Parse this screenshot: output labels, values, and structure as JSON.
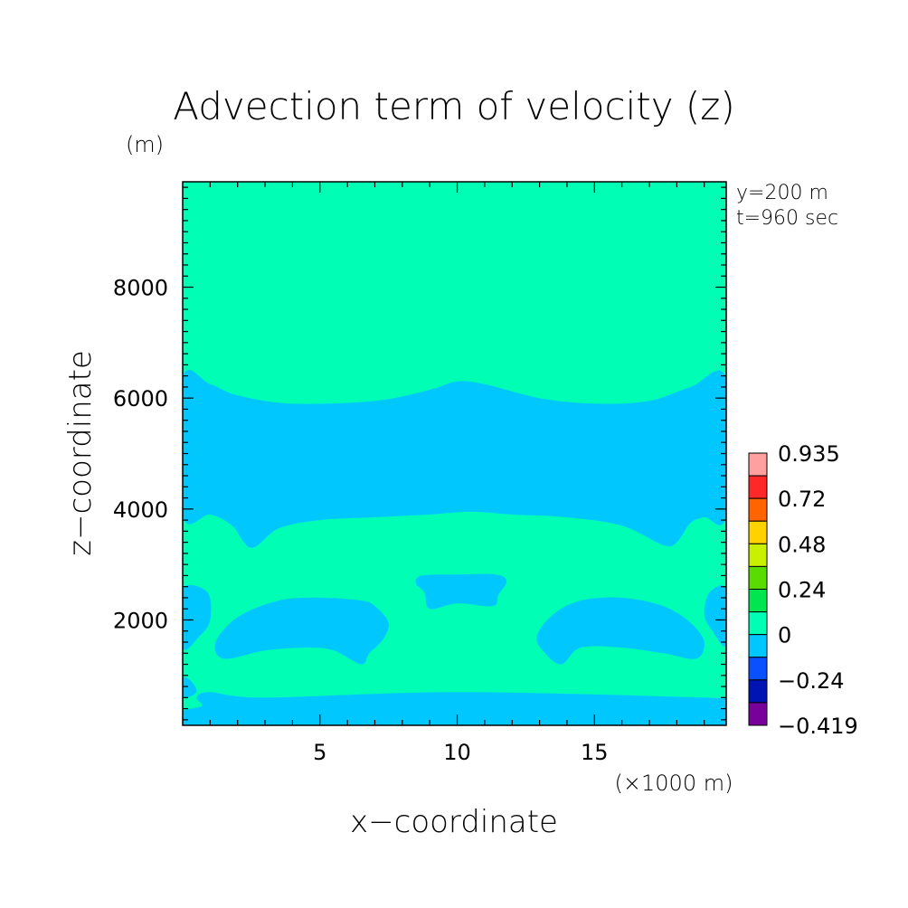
{
  "chart_data": {
    "type": "heatmap",
    "title": "Advection term of velocity (z)",
    "y_unit": "(m)",
    "x_unit": "(×1000 m)",
    "xlabel": "x−coordinate",
    "ylabel": "z−coordinate",
    "xlim": [
      0,
      19.8
    ],
    "ylim": [
      100,
      9900
    ],
    "x_ticks": [
      5,
      10,
      15
    ],
    "x_tick_labels": [
      "5",
      "10",
      "15"
    ],
    "y_ticks": [
      2000,
      4000,
      6000,
      8000
    ],
    "y_tick_labels": [
      "2000",
      "4000",
      "6000",
      "8000"
    ],
    "annotations": [
      "y=200 m",
      "t=960 sec"
    ],
    "background_level_color": "#00ffb4",
    "colorbar": {
      "labels": [
        "0.935",
        "0.72",
        "0.48",
        "0.24",
        "0",
        "−0.24",
        "−0.419"
      ],
      "bands": [
        {
          "from": 0.84,
          "to": 0.935,
          "color": "#ffa0a0"
        },
        {
          "from": 0.72,
          "to": 0.84,
          "color": "#ff2828"
        },
        {
          "from": 0.6,
          "to": 0.72,
          "color": "#ff6400"
        },
        {
          "from": 0.48,
          "to": 0.6,
          "color": "#ffd200"
        },
        {
          "from": 0.36,
          "to": 0.48,
          "color": "#c8f000"
        },
        {
          "from": 0.24,
          "to": 0.36,
          "color": "#5adc00"
        },
        {
          "from": 0.12,
          "to": 0.24,
          "color": "#00e650"
        },
        {
          "from": 0,
          "to": 0.12,
          "color": "#00ffb4"
        },
        {
          "from": -0.12,
          "to": 0,
          "color": "#00c8ff"
        },
        {
          "from": -0.24,
          "to": -0.12,
          "color": "#0a50ff"
        },
        {
          "from": -0.36,
          "to": -0.24,
          "color": "#0014b4"
        },
        {
          "from": -0.419,
          "to": -0.36,
          "color": "#78009b"
        }
      ]
    },
    "regions": [
      {
        "name": "negative-band-upper",
        "color": "#00c8ff",
        "points": [
          [
            0,
            6350
          ],
          [
            1,
            6250
          ],
          [
            2,
            6050
          ],
          [
            4,
            5900
          ],
          [
            7,
            5950
          ],
          [
            9,
            6150
          ],
          [
            10,
            6300
          ],
          [
            11,
            6250
          ],
          [
            13,
            6000
          ],
          [
            15,
            5900
          ],
          [
            17,
            5950
          ],
          [
            18.5,
            6200
          ],
          [
            19.8,
            6350
          ],
          [
            19.8,
            3900
          ],
          [
            19,
            3850
          ],
          [
            18.5,
            3750
          ],
          [
            18,
            3400
          ],
          [
            17.5,
            3350
          ],
          [
            16,
            3700
          ],
          [
            14,
            3850
          ],
          [
            12,
            3900
          ],
          [
            10.5,
            3950
          ],
          [
            9,
            3900
          ],
          [
            7,
            3850
          ],
          [
            5,
            3800
          ],
          [
            3.5,
            3650
          ],
          [
            2.5,
            3300
          ],
          [
            1.8,
            3700
          ],
          [
            1,
            3900
          ],
          [
            0,
            3900
          ]
        ]
      },
      {
        "name": "negative-blob-center-top",
        "color": "#00c8ff",
        "points": [
          [
            8.7,
            2800
          ],
          [
            10,
            2820
          ],
          [
            11.4,
            2820
          ],
          [
            11.8,
            2700
          ],
          [
            11.5,
            2450
          ],
          [
            11.3,
            2250
          ],
          [
            10,
            2300
          ],
          [
            9,
            2200
          ],
          [
            8.8,
            2500
          ],
          [
            8.5,
            2650
          ]
        ]
      },
      {
        "name": "negative-blob-left",
        "color": "#00c8ff",
        "points": [
          [
            1.2,
            1600
          ],
          [
            2,
            2050
          ],
          [
            3.5,
            2350
          ],
          [
            5,
            2400
          ],
          [
            6.5,
            2350
          ],
          [
            7,
            2250
          ],
          [
            7.5,
            1950
          ],
          [
            7.3,
            1650
          ],
          [
            6.8,
            1400
          ],
          [
            6.5,
            1200
          ],
          [
            5.5,
            1450
          ],
          [
            4.5,
            1500
          ],
          [
            3,
            1450
          ],
          [
            1.5,
            1300
          ]
        ]
      },
      {
        "name": "negative-blob-right",
        "color": "#00c8ff",
        "points": [
          [
            12.9,
            1700
          ],
          [
            13.5,
            2100
          ],
          [
            14.5,
            2350
          ],
          [
            16,
            2400
          ],
          [
            17.5,
            2250
          ],
          [
            18.5,
            1950
          ],
          [
            19,
            1600
          ],
          [
            18.7,
            1300
          ],
          [
            17.5,
            1400
          ],
          [
            16,
            1500
          ],
          [
            14.5,
            1500
          ],
          [
            13.8,
            1200
          ],
          [
            13.2,
            1400
          ]
        ]
      },
      {
        "name": "negative-edge-left",
        "color": "#00c8ff",
        "points": [
          [
            0,
            1500
          ],
          [
            0.6,
            1700
          ],
          [
            1,
            2000
          ],
          [
            0.9,
            2500
          ],
          [
            0,
            2550
          ]
        ]
      },
      {
        "name": "negative-edge-right",
        "color": "#00c8ff",
        "points": [
          [
            19.8,
            2550
          ],
          [
            19.2,
            2500
          ],
          [
            19,
            2100
          ],
          [
            19.3,
            1800
          ],
          [
            19.8,
            1550
          ]
        ]
      },
      {
        "name": "negative-band-bottom",
        "color": "#00c8ff",
        "points": [
          [
            0,
            100
          ],
          [
            0,
            350
          ],
          [
            0.7,
            450
          ],
          [
            0.5,
            600
          ],
          [
            1,
            700
          ],
          [
            3,
            600
          ],
          [
            10,
            700
          ],
          [
            19,
            600
          ],
          [
            19.8,
            550
          ],
          [
            19.8,
            100
          ]
        ]
      },
      {
        "name": "negative-bottom-left-notch",
        "color": "#00c8ff",
        "points": [
          [
            0,
            600
          ],
          [
            0.5,
            700
          ],
          [
            0.3,
            900
          ],
          [
            0,
            950
          ]
        ]
      }
    ]
  }
}
